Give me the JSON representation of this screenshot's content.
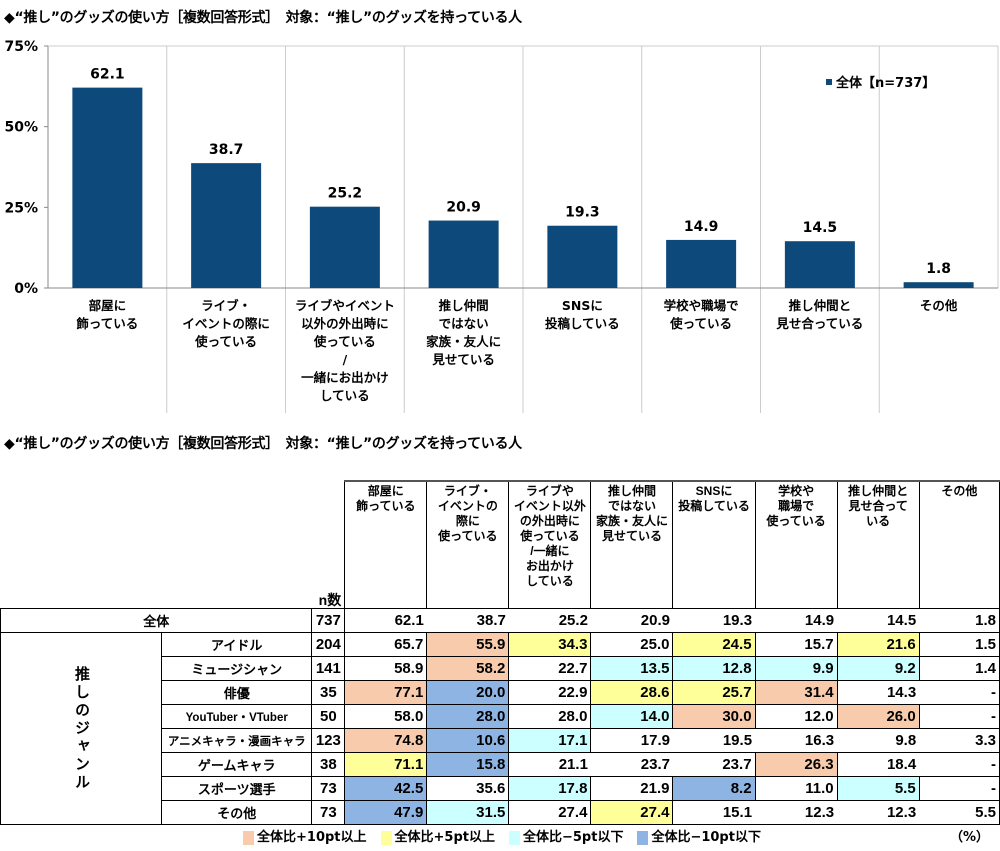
{
  "chart_title": "◆“推し”のグッズの使い方［複数回答形式］　対象：“推し”のグッズを持っている人",
  "table_title": "◆“推し”のグッズの使い方［複数回答形式］　対象：“推し”のグッズを持っている人",
  "chart_data": {
    "type": "bar",
    "categories": [
      "部屋に\n飾っている",
      "ライブ・\nイベントの際に\n使っている",
      "ライブやイベント\n以外の外出時に\n使っている\n/\n一緒にお出かけ\nしている",
      "推し仲間\nではない\n家族・友人に\n見せている",
      "SNSに\n投稿している",
      "学校や職場で\n使っている",
      "推し仲間と\n見せ合っている",
      "その他"
    ],
    "series": [
      {
        "name": "全体【n=737】",
        "values": [
          62.1,
          38.7,
          25.2,
          20.9,
          19.3,
          14.9,
          14.5,
          1.8
        ]
      }
    ],
    "ylim": [
      0,
      75
    ],
    "yticks": [
      "0%",
      "25%",
      "50%",
      "75%"
    ],
    "bar_color": "#0D4A7B",
    "legend_position": "top-right",
    "grid": "vertical separators"
  },
  "table": {
    "n_header": "n数",
    "headers": [
      "部屋に\n飾っている",
      "ライブ・\nイベントの\n際に\n使っている",
      "ライブや\nイベント以外\nの外出時に\n使っている\n/一緒に\nお出かけ\nしている",
      "推し仲間\nではない\n家族・友人に\n見せている",
      "SNSに\n投稿している",
      "学校や\n職場で\n使っている",
      "推し仲間と\n見せ合って\nいる",
      "その他"
    ],
    "total": {
      "label": "全体",
      "n": "737",
      "values": [
        "62.1",
        "38.7",
        "25.2",
        "20.9",
        "19.3",
        "14.9",
        "14.5",
        "1.8"
      ]
    },
    "group_label": "推しのジャンル",
    "rows": [
      {
        "label": "アイドル",
        "n": "204",
        "values": [
          "65.7",
          "55.9",
          "34.3",
          "25.0",
          "24.5",
          "15.7",
          "21.6",
          "1.5"
        ],
        "hl": [
          "",
          "o",
          "y",
          "",
          "y",
          "",
          "y",
          ""
        ]
      },
      {
        "label": "ミュージシャン",
        "n": "141",
        "values": [
          "58.9",
          "58.2",
          "22.7",
          "13.5",
          "12.8",
          "9.9",
          "9.2",
          "1.4"
        ],
        "hl": [
          "",
          "o",
          "",
          "c",
          "c",
          "c",
          "c",
          ""
        ]
      },
      {
        "label": "俳優",
        "n": "35",
        "values": [
          "77.1",
          "20.0",
          "22.9",
          "28.6",
          "25.7",
          "31.4",
          "14.3",
          "-"
        ],
        "hl": [
          "o",
          "b",
          "",
          "y",
          "y",
          "o",
          "",
          ""
        ]
      },
      {
        "label": "YouTuber・VTuber",
        "n": "50",
        "values": [
          "58.0",
          "28.0",
          "28.0",
          "14.0",
          "30.0",
          "12.0",
          "26.0",
          "-"
        ],
        "hl": [
          "",
          "b",
          "",
          "c",
          "o",
          "",
          "o",
          ""
        ]
      },
      {
        "label": "アニメキャラ・漫画キャラ",
        "n": "123",
        "values": [
          "74.8",
          "10.6",
          "17.1",
          "17.9",
          "19.5",
          "16.3",
          "9.8",
          "3.3"
        ],
        "hl": [
          "o",
          "b",
          "c",
          "",
          "",
          "",
          "",
          ""
        ]
      },
      {
        "label": "ゲームキャラ",
        "n": "38",
        "values": [
          "71.1",
          "15.8",
          "21.1",
          "23.7",
          "23.7",
          "26.3",
          "18.4",
          "-"
        ],
        "hl": [
          "y",
          "b",
          "",
          "",
          "",
          "o",
          "",
          ""
        ]
      },
      {
        "label": "スポーツ選手",
        "n": "73",
        "values": [
          "42.5",
          "35.6",
          "17.8",
          "21.9",
          "8.2",
          "11.0",
          "5.5",
          "-"
        ],
        "hl": [
          "b",
          "",
          "c",
          "",
          "b",
          "",
          "c",
          ""
        ]
      },
      {
        "label": "その他",
        "n": "73",
        "values": [
          "47.9",
          "31.5",
          "27.4",
          "27.4",
          "15.1",
          "12.3",
          "12.3",
          "5.5"
        ],
        "hl": [
          "b",
          "c",
          "",
          "y",
          "",
          "",
          "",
          ""
        ]
      }
    ]
  },
  "legend": [
    {
      "label": "全体比+10pt以上",
      "color": "#F8CBAD"
    },
    {
      "label": "全体比+5pt以上",
      "color": "#FFFF99"
    },
    {
      "label": "全体比−5pt以下",
      "color": "#CCFFFF"
    },
    {
      "label": "全体比−10pt以下",
      "color": "#8DB4E2"
    }
  ],
  "unit": "（%）"
}
